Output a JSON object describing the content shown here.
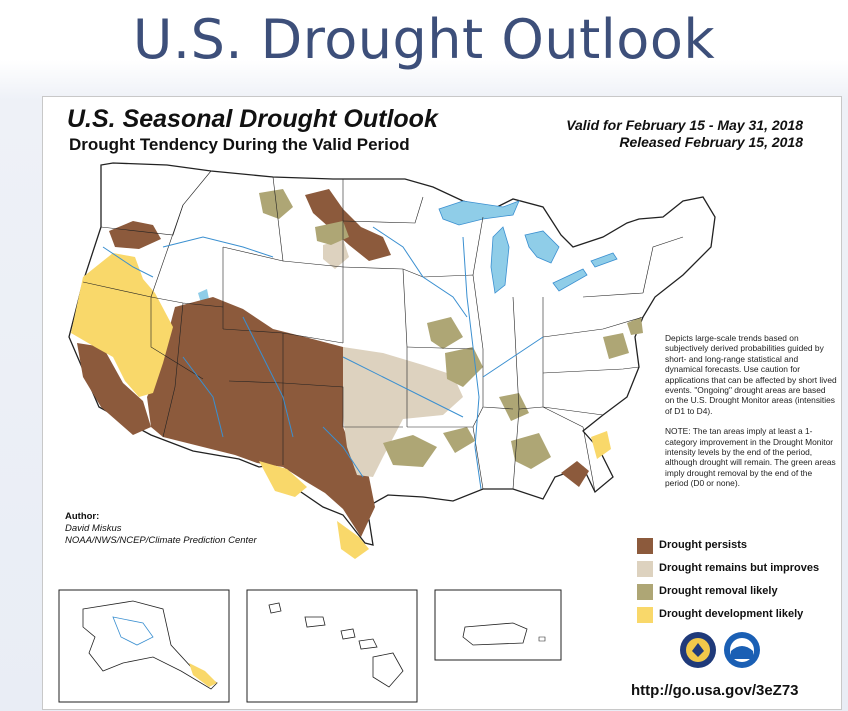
{
  "slide": {
    "title": "U.S. Drought Outlook"
  },
  "map": {
    "title": "U.S. Seasonal Drought Outlook",
    "subtitle": "Drought Tendency During the Valid Period",
    "valid_text": "Valid for February 15 - May 31, 2018",
    "released_text": "Released February 15, 2018",
    "description": "Depicts large-scale trends based on subjectively derived probabilities guided by short- and long-range statistical and dynamical forecasts. Use caution for applications that can be affected by short lived events. \"Ongoing\" drought areas are based on the U.S. Drought Monitor areas (intensities of D1 to D4).",
    "note": "NOTE: The tan areas imply at least a 1-category improvement in the Drought Monitor intensity levels by the end of the period, although drought will remain. The green areas imply drought removal by the end of the period (D0 or none).",
    "author_label": "Author:",
    "author_name": "David Miskus",
    "author_org": "NOAA/NWS/NCEP/Climate Prediction Center",
    "url": "http://go.usa.gov/3eZ73"
  },
  "legend": [
    {
      "label": "Drought persists",
      "color": "#8c5a3c"
    },
    {
      "label": "Drought remains but improves",
      "color": "#ddd2bf"
    },
    {
      "label": "Drought removal likely",
      "color": "#aea675"
    },
    {
      "label": "Drought development likely",
      "color": "#f9d86a"
    }
  ],
  "colors": {
    "persists": "#8c5a3c",
    "improves": "#ddd2bf",
    "removal": "#aea675",
    "development": "#f9d86a",
    "water": "#8fcde8",
    "rivers": "#3a8fd0",
    "title_color": "#3d4f7a"
  }
}
